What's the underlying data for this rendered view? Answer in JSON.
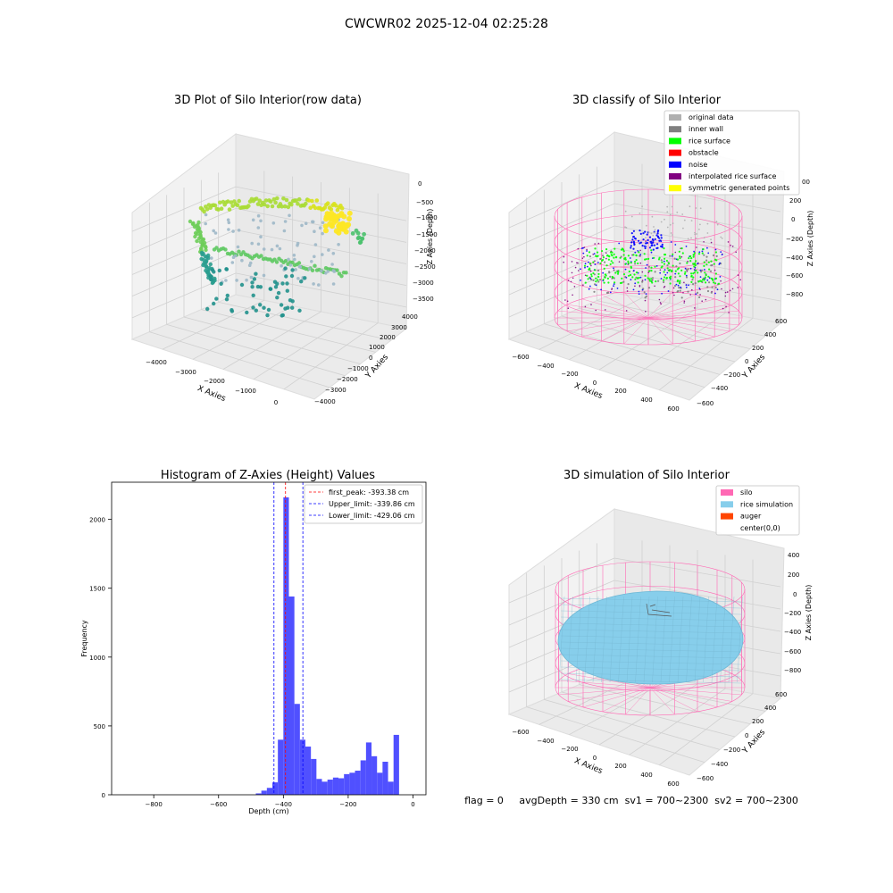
{
  "page": {
    "suptitle": "CWCWR02 2025-12-04 02:25:28",
    "status_line": "flag = 0     avgDepth = 330 cm  sv1 = 700~2300  sv2 = 700~2300"
  },
  "colors": {
    "silo": "#ff69b4",
    "rice_simulation": "#87ceeb",
    "auger": "#ff4500",
    "original": "#b0b0b0",
    "inner_wall": "#808080",
    "rice_surface": "#00ff00",
    "obstacle": "#ff0000",
    "noise": "#0000ff",
    "interpolated": "#800080",
    "symmetric": "#ffff00",
    "hist_bar": "#5050ff",
    "peak_line": "#ff0000",
    "limit_line": "#0000ff"
  },
  "chart_data": [
    {
      "type": "scatter",
      "title": "3D Plot of Silo Interior(row data)",
      "xlabel": "X Axies",
      "ylabel": "Y Axies",
      "zlabel": "Z Axies (Depth)",
      "x_ticks": [
        "−4000",
        "−3000",
        "−2000",
        "−1000",
        "0"
      ],
      "y_ticks": [
        "4000",
        "3000",
        "2000",
        "1000",
        "0",
        "−1000",
        "−2000",
        "−3000",
        "−4000"
      ],
      "z_ticks": [
        "0",
        "−500",
        "−1000",
        "−1500",
        "−2000",
        "−2500",
        "−3000",
        "−3500"
      ],
      "grid": true
    },
    {
      "type": "scatter",
      "title": "3D classify of Silo Interior",
      "xlabel": "X Axies",
      "ylabel": "Y Axies",
      "zlabel": "Z Axies (Depth)",
      "x_ticks": [
        "−600",
        "−400",
        "−200",
        "0",
        "200",
        "400",
        "600"
      ],
      "y_ticks": [
        "600",
        "400",
        "200",
        "0",
        "−200",
        "−400",
        "−600"
      ],
      "z_ticks": [
        "200",
        "0",
        "−200",
        "−400",
        "−600",
        "−800"
      ],
      "z_top_tick": "00",
      "legend_position": "top-right",
      "legend": [
        {
          "label": "original data",
          "color": "#b0b0b0"
        },
        {
          "label": "inner wall",
          "color": "#808080"
        },
        {
          "label": "rice surface",
          "color": "#00ff00"
        },
        {
          "label": "obstacle",
          "color": "#ff0000"
        },
        {
          "label": "noise",
          "color": "#0000ff"
        },
        {
          "label": "interpolated rice surface",
          "color": "#800080"
        },
        {
          "label": "symmetric generated points",
          "color": "#ffff00"
        }
      ],
      "grid": true
    },
    {
      "type": "bar",
      "title": "Histogram of Z-Axies (Height) Values",
      "xlabel": "Depth (cm)",
      "ylabel": "Frequency",
      "xlim": [
        -930,
        40
      ],
      "ylim": [
        0,
        2270
      ],
      "x_ticks": [
        -800,
        -600,
        -400,
        -200,
        0
      ],
      "x_tick_labels": [
        "−800",
        "−600",
        "−400",
        "−200",
        "0"
      ],
      "y_ticks": [
        0,
        500,
        1000,
        1500,
        2000
      ],
      "y_tick_labels": [
        "0",
        "500",
        "1000",
        "1500",
        "2000"
      ],
      "bin_width": 17,
      "bin_starts": [
        -485,
        -468,
        -451,
        -434,
        -417,
        -400,
        -383,
        -366,
        -349,
        -332,
        -315,
        -298,
        -281,
        -264,
        -247,
        -230,
        -213,
        -196,
        -179,
        -162,
        -145,
        -128,
        -111,
        -94,
        -77,
        -60,
        -43,
        -26,
        -9
      ],
      "values": [
        10,
        30,
        50,
        90,
        400,
        2160,
        1440,
        660,
        400,
        350,
        260,
        115,
        95,
        110,
        125,
        120,
        150,
        160,
        175,
        250,
        380,
        280,
        160,
        240,
        95,
        435,
        0,
        0,
        0
      ],
      "vlines": [
        {
          "x": -393.38,
          "color": "#ff0000",
          "label": "first_peak: -393.38 cm"
        },
        {
          "x": -339.86,
          "color": "#0000ff",
          "label": "Upper_limit: -339.86 cm"
        },
        {
          "x": -429.06,
          "color": "#0000ff",
          "label": "Lower_limit: -429.06 cm"
        }
      ],
      "legend_position": "top-right",
      "grid": false
    },
    {
      "type": "scatter",
      "title": "3D simulation of Silo Interior",
      "xlabel": "X Axies",
      "ylabel": "Y Axies",
      "zlabel": "Z Axies (Depth)",
      "x_ticks": [
        "−600",
        "−400",
        "−200",
        "0",
        "200",
        "400",
        "600"
      ],
      "y_ticks": [
        "600",
        "400",
        "200",
        "0",
        "−200",
        "−400",
        "−600"
      ],
      "z_ticks": [
        "400",
        "200",
        "0",
        "−200",
        "−400",
        "−600",
        "−800"
      ],
      "legend_position": "top-right",
      "legend": [
        {
          "label": "silo",
          "color": "#ff69b4"
        },
        {
          "label": "rice simulation",
          "color": "#87ceeb"
        },
        {
          "label": "auger",
          "color": "#ff4500"
        },
        {
          "label": "center(0,0)",
          "color": ""
        }
      ],
      "grid": true
    }
  ]
}
